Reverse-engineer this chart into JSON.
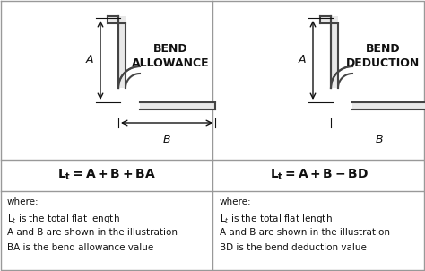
{
  "bg_color": "#ffffff",
  "sheet_color": "#e8e8e8",
  "sheet_edge": "#444444",
  "border_color": "#999999",
  "arrow_color": "#111111",
  "text_color": "#111111",
  "title1_line1": "BEND",
  "title1_line2": "ALLOWANCE",
  "title2_line1": "BEND",
  "title2_line2": "DEDUCTION",
  "label_A": "A",
  "label_B": "B",
  "formula1": "L$_t$ = A + B + BA",
  "formula2": "L$_t$ = A + B - BD",
  "where1": [
    "where:",
    "L$_t$ is the total flat length",
    "A and B are shown in the illustration",
    "BA is the bend allowance value"
  ],
  "where2": [
    "where:",
    "L$_t$ is the total flat length",
    "A and B are shown in the illustration",
    "BD is the bend deduction value"
  ]
}
